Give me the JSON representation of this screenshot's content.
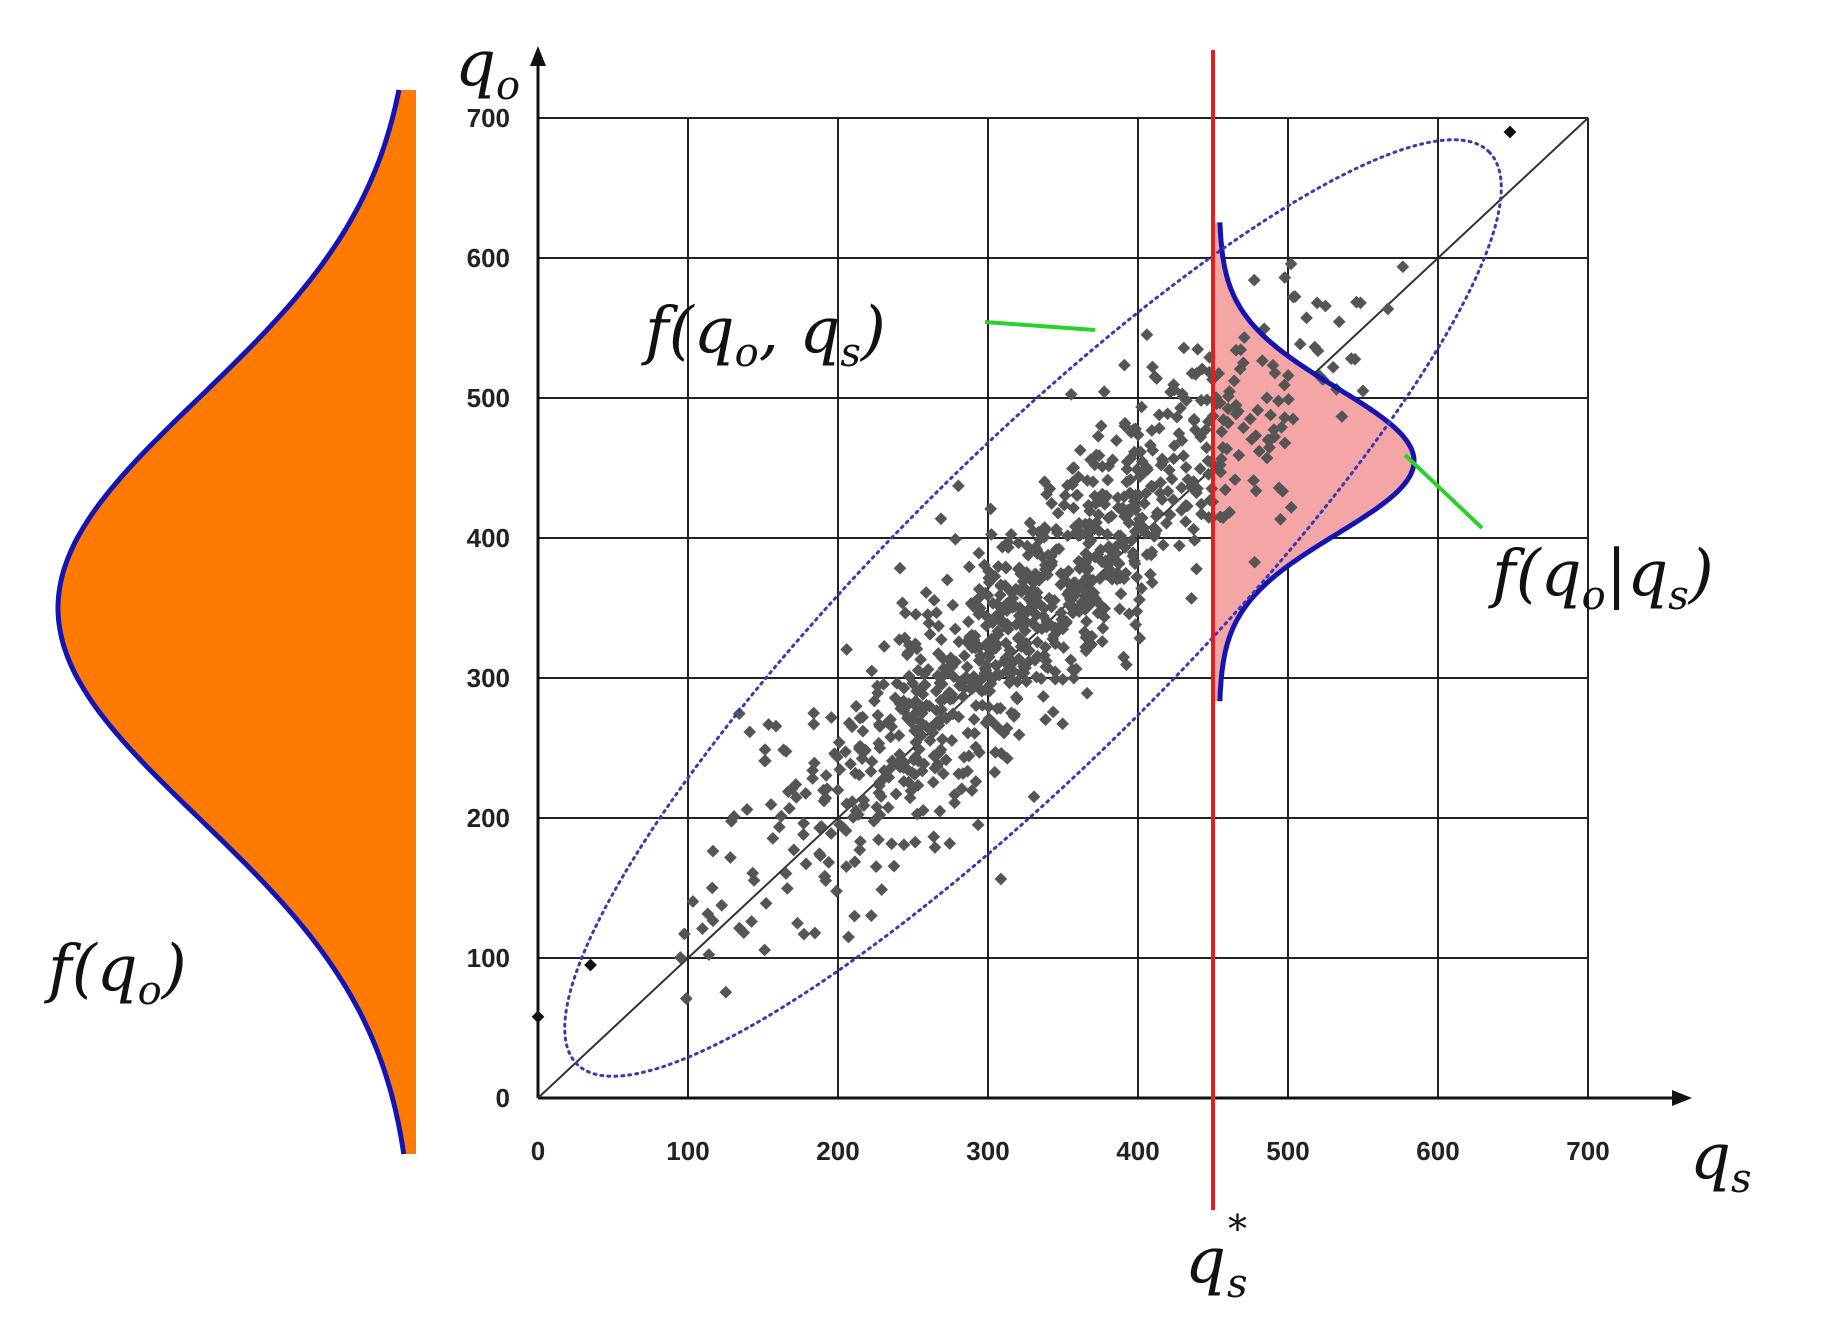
{
  "chart_data": {
    "type": "scatter",
    "title": "",
    "x_axis": {
      "label": "q",
      "label_sub": "s",
      "min": 0,
      "max": 700,
      "ticks": [
        0,
        100,
        200,
        300,
        400,
        500,
        600,
        700
      ]
    },
    "y_axis": {
      "label": "q",
      "label_sub": "o",
      "min": 0,
      "max": 700,
      "ticks": [
        0,
        100,
        200,
        300,
        400,
        500,
        600,
        700
      ]
    },
    "grid": true,
    "diagonal": {
      "from": [
        0,
        0
      ],
      "to": [
        700,
        700
      ]
    },
    "threshold": {
      "x": 450,
      "label": "q",
      "label_sub": "s",
      "label_sup": "*",
      "color": "#e02020"
    },
    "joint_ellipse": {
      "center": [
        330,
        350
      ],
      "angle_deg": 45,
      "semi_major": 430,
      "semi_minor": 100,
      "style": "dotted",
      "color": "#3a3ab0"
    },
    "conditional_density": {
      "at_x": 450,
      "mean_y": 455,
      "sd_y": 52,
      "peak_width_x": 130,
      "fill": "#f4a6a6",
      "stroke": "#1414b4"
    },
    "marginal_density": {
      "mean_y": 350,
      "sd_y": 150,
      "fill": "#ff7a00",
      "stroke": "#1414b4"
    },
    "annotations": {
      "joint": {
        "text": "f(q",
        "sub": "o",
        "rest": ", q",
        "sub2": "s",
        "close": ")"
      },
      "conditional": {
        "text": "f(q",
        "sub": "o",
        "rest": "|q",
        "sub2": "s",
        "close": ")"
      },
      "marginal": {
        "text": "f(q",
        "sub": "o",
        "close": ")"
      }
    },
    "points_summary": "about 1000 observed–simulated pairs scattered along the 1:1 line",
    "outliers": [
      {
        "x": 0,
        "y": 58
      },
      {
        "x": 648,
        "y": 690
      },
      {
        "x": 35,
        "y": 95
      }
    ],
    "colors": {
      "points": "#555555",
      "grid": "#222222",
      "leader_lines": "#2bd12b",
      "axis": "#111111"
    }
  }
}
